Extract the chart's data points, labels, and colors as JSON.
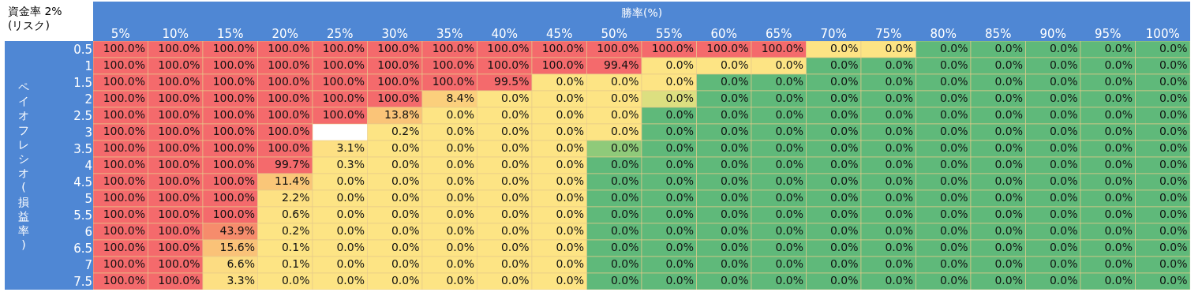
{
  "chart_data": {
    "type": "heatmap",
    "title": "資金率 2%\n(リスク)",
    "xlabel": "勝率(%)",
    "ylabel": "ペイオフレシオ(損益率)",
    "categories": [
      "5%",
      "10%",
      "15%",
      "20%",
      "25%",
      "30%",
      "35%",
      "40%",
      "45%",
      "50%",
      "55%",
      "60%",
      "65%",
      "70%",
      "75%",
      "80%",
      "85%",
      "90%",
      "95%",
      "100%"
    ],
    "y_categories": [
      "0.5",
      "1",
      "1.5",
      "2",
      "2.5",
      "3",
      "3.5",
      "4",
      "4.5",
      "5",
      "5.5",
      "6",
      "6.5",
      "7",
      "7.5"
    ],
    "cells": [
      [
        100,
        100,
        100,
        100,
        100,
        100,
        100,
        100,
        100,
        100,
        100,
        100,
        100,
        0,
        0,
        0,
        0,
        0,
        0,
        0
      ],
      [
        100,
        100,
        100,
        100,
        100,
        100,
        100,
        100,
        100,
        99.4,
        0,
        0,
        0,
        0,
        0,
        0,
        0,
        0,
        0,
        0
      ],
      [
        100,
        100,
        100,
        100,
        100,
        100,
        100,
        99.5,
        0,
        0,
        0,
        0,
        0,
        0,
        0,
        0,
        0,
        0,
        0,
        0
      ],
      [
        100,
        100,
        100,
        100,
        100,
        100,
        8.4,
        0,
        0,
        0,
        0,
        0,
        0,
        0,
        0,
        0,
        0,
        0,
        0,
        0
      ],
      [
        100,
        100,
        100,
        100,
        100,
        13.8,
        0,
        0,
        0,
        0,
        0,
        0,
        0,
        0,
        0,
        0,
        0,
        0,
        0,
        0
      ],
      [
        100,
        100,
        100,
        100,
        null,
        0.2,
        0,
        0,
        0,
        0,
        0,
        0,
        0,
        0,
        0,
        0,
        0,
        0,
        0,
        0
      ],
      [
        100,
        100,
        100,
        100,
        3.1,
        0,
        0,
        0,
        0,
        0,
        0,
        0,
        0,
        0,
        0,
        0,
        0,
        0,
        0,
        0
      ],
      [
        100,
        100,
        100,
        99.7,
        0.3,
        0,
        0,
        0,
        0,
        0,
        0,
        0,
        0,
        0,
        0,
        0,
        0,
        0,
        0,
        0
      ],
      [
        100,
        100,
        100,
        11.4,
        0,
        0,
        0,
        0,
        0,
        0,
        0,
        0,
        0,
        0,
        0,
        0,
        0,
        0,
        0,
        0
      ],
      [
        100,
        100,
        100,
        2.2,
        0,
        0,
        0,
        0,
        0,
        0,
        0,
        0,
        0,
        0,
        0,
        0,
        0,
        0,
        0,
        0
      ],
      [
        100,
        100,
        100,
        0.6,
        0,
        0,
        0,
        0,
        0,
        0,
        0,
        0,
        0,
        0,
        0,
        0,
        0,
        0,
        0,
        0
      ],
      [
        100,
        100,
        43.9,
        0.2,
        0,
        0,
        0,
        0,
        0,
        0,
        0,
        0,
        0,
        0,
        0,
        0,
        0,
        0,
        0,
        0
      ],
      [
        100,
        100,
        15.6,
        0.1,
        0,
        0,
        0,
        0,
        0,
        0,
        0,
        0,
        0,
        0,
        0,
        0,
        0,
        0,
        0,
        0
      ],
      [
        100,
        100,
        6.6,
        0.1,
        0,
        0,
        0,
        0,
        0,
        0,
        0,
        0,
        0,
        0,
        0,
        0,
        0,
        0,
        0,
        0
      ],
      [
        100,
        100,
        3.3,
        0,
        0,
        0,
        0,
        0,
        0,
        0,
        0,
        0,
        0,
        0,
        0,
        0,
        0,
        0,
        0,
        0
      ]
    ],
    "data_labels": true,
    "colors": [
      [
        "#fde484",
        "#fde484",
        "#fde484",
        "#fde484",
        "#fde484",
        "#fde484",
        "#fde484",
        "#fde484",
        "#fde484",
        "#fde484",
        "#fde484",
        "#fde484",
        "#fde484",
        "#fde484",
        "#fde484",
        "#5fb97a",
        "#5fb97a",
        "#5fb97a",
        "#5fb97a",
        "#5fb97a"
      ],
      [
        "#f46a6c",
        "#f46a6c",
        "#f46a6c",
        "#f46a6c",
        "#f46a6c",
        "#f46a6c",
        "#f46a6c",
        "#f46a6c",
        "#f46a6c",
        "#f46a6c",
        "#fde484",
        "#fde484",
        "#fde484",
        "#5fb97a",
        "#5fb97a",
        "#5fb97a",
        "#5fb97a",
        "#5fb97a",
        "#5fb97a",
        "#5fb97a"
      ],
      [
        "#f46a6c",
        "#f46a6c",
        "#f46a6c",
        "#f46a6c",
        "#f46a6c",
        "#f46a6c",
        "#f46a6c",
        "#f46a6c",
        "#fde484",
        "#fde484",
        "#fde484",
        "#5fb97a",
        "#5fb97a",
        "#5fb97a",
        "#5fb97a",
        "#5fb97a",
        "#5fb97a",
        "#5fb97a",
        "#5fb97a",
        "#5fb97a"
      ],
      [
        "#f46a6c",
        "#f46a6c",
        "#f46a6c",
        "#f46a6c",
        "#f46a6c",
        "#f46a6c",
        "#fcd87e",
        "#fde484",
        "#fde484",
        "#fde484",
        "#dcdf80",
        "#5fb97a",
        "#5fb97a",
        "#5fb97a",
        "#5fb97a",
        "#5fb97a",
        "#5fb97a",
        "#5fb97a",
        "#5fb97a",
        "#5fb97a"
      ],
      [
        "#f46a6c",
        "#f46a6c",
        "#f46a6c",
        "#f46a6c",
        "#f46a6c",
        "#fbd27a",
        "#fde484",
        "#fde484",
        "#fde484",
        "#fde484",
        "#5fb97a",
        "#5fb97a",
        "#5fb97a",
        "#5fb97a",
        "#5fb97a",
        "#5fb97a",
        "#5fb97a",
        "#5fb97a",
        "#5fb97a",
        "#5fb97a"
      ],
      [
        "#f46a6c",
        "#f46a6c",
        "#f46a6c",
        "#f46a6c",
        "#f46a6c",
        "#fde484",
        "#fde484",
        "#fde484",
        "#fde484",
        "#fde484",
        "#5fb97a",
        "#5fb97a",
        "#5fb97a",
        "#5fb97a",
        "#5fb97a",
        "#5fb97a",
        "#5fb97a",
        "#5fb97a",
        "#5fb97a",
        "#5fb97a"
      ],
      [
        "#f46a6c",
        "#f46a6c",
        "#f46a6c",
        "#f46a6c",
        "#fde484",
        "#fde484",
        "#fde484",
        "#fde484",
        "#fde484",
        "#8fca7a",
        "#5fb97a",
        "#5fb97a",
        "#5fb97a",
        "#5fb97a",
        "#5fb97a",
        "#5fb97a",
        "#5fb97a",
        "#5fb97a",
        "#5fb97a",
        "#5fb97a"
      ],
      [
        "#f46a6c",
        "#f46a6c",
        "#f46a6c",
        "#f46a6c",
        "#fde484",
        "#fde484",
        "#fde484",
        "#fde484",
        "#fde484",
        "#5fb97a",
        "#5fb97a",
        "#5fb97a",
        "#5fb97a",
        "#5fb97a",
        "#5fb97a",
        "#5fb97a",
        "#5fb97a",
        "#5fb97a",
        "#5fb97a",
        "#5fb97a"
      ],
      [
        "#f46a6c",
        "#f46a6c",
        "#f46a6c",
        "#fbd27a",
        "#fde484",
        "#fde484",
        "#fde484",
        "#fde484",
        "#fde484",
        "#5fb97a",
        "#5fb97a",
        "#5fb97a",
        "#5fb97a",
        "#5fb97a",
        "#5fb97a",
        "#5fb97a",
        "#5fb97a",
        "#5fb97a",
        "#5fb97a",
        "#5fb97a"
      ],
      [
        "#f46a6c",
        "#f46a6c",
        "#f46a6c",
        "#fde484",
        "#fde484",
        "#fde484",
        "#fde484",
        "#fde484",
        "#fde484",
        "#5fb97a",
        "#5fb97a",
        "#5fb97a",
        "#5fb97a",
        "#5fb97a",
        "#5fb97a",
        "#5fb97a",
        "#5fb97a",
        "#5fb97a",
        "#5fb97a",
        "#5fb97a"
      ],
      [
        "#f46a6c",
        "#f46a6c",
        "#f46a6c",
        "#fde484",
        "#fde484",
        "#fde484",
        "#fde484",
        "#fde484",
        "#fde484",
        "#5fb97a",
        "#5fb97a",
        "#5fb97a",
        "#5fb97a",
        "#5fb97a",
        "#5fb97a",
        "#5fb97a",
        "#5fb97a",
        "#5fb97a",
        "#5fb97a",
        "#5fb97a"
      ],
      [
        "#f46a6c",
        "#f46a6c",
        "#f8a66c",
        "#fde484",
        "#fde484",
        "#fde484",
        "#fde484",
        "#fde484",
        "#fde484",
        "#5fb97a",
        "#5fb97a",
        "#5fb97a",
        "#5fb97a",
        "#5fb97a",
        "#5fb97a",
        "#5fb97a",
        "#5fb97a",
        "#5fb97a",
        "#5fb97a",
        "#5fb97a"
      ],
      [
        "#f46a6c",
        "#f46a6c",
        "#fbd27a",
        "#fde484",
        "#fde484",
        "#fde484",
        "#fde484",
        "#fde484",
        "#fde484",
        "#5fb97a",
        "#5fb97a",
        "#5fb97a",
        "#5fb97a",
        "#5fb97a",
        "#5fb97a",
        "#5fb97a",
        "#5fb97a",
        "#5fb97a",
        "#5fb97a",
        "#5fb97a"
      ],
      [
        "#f46a6c",
        "#f46a6c",
        "#fde484",
        "#fde484",
        "#fde484",
        "#fde484",
        "#fde484",
        "#fde484",
        "#fde484",
        "#5fb97a",
        "#5fb97a",
        "#5fb97a",
        "#5fb97a",
        "#5fb97a",
        "#5fb97a",
        "#5fb97a",
        "#5fb97a",
        "#5fb97a",
        "#5fb97a",
        "#5fb97a"
      ],
      [
        "#f46a6c",
        "#f46a6c",
        "#fde484",
        "#fde484",
        "#fde484",
        "#fde484",
        "#fde484",
        "#fde484",
        "#fde484",
        "#5fb97a",
        "#5fb97a",
        "#5fb97a",
        "#5fb97a",
        "#5fb97a",
        "#5fb97a",
        "#5fb97a",
        "#5fb97a",
        "#5fb97a",
        "#5fb97a",
        "#5fb97a"
      ]
    ],
    "cell_labels": [
      [
        "100.0%",
        "100.0%",
        "100.0%",
        "100.0%",
        "100.0%",
        "100.0%",
        "100.0%",
        "100.0%",
        "100.0%",
        "100.0%",
        "100.0%",
        "100.0%",
        "100.0%",
        "0.0%",
        "0.0%",
        "0.0%",
        "0.0%",
        "0.0%",
        "0.0%",
        "0.0%"
      ],
      [
        "100.0%",
        "100.0%",
        "100.0%",
        "100.0%",
        "100.0%",
        "100.0%",
        "100.0%",
        "100.0%",
        "100.0%",
        "99.4%",
        "0.0%",
        "0.0%",
        "0.0%",
        "0.0%",
        "0.0%",
        "0.0%",
        "0.0%",
        "0.0%",
        "0.0%",
        "0.0%"
      ],
      [
        "100.0%",
        "100.0%",
        "100.0%",
        "100.0%",
        "100.0%",
        "100.0%",
        "100.0%",
        "99.5%",
        "0.0%",
        "0.0%",
        "0.0%",
        "0.0%",
        "0.0%",
        "0.0%",
        "0.0%",
        "0.0%",
        "0.0%",
        "0.0%",
        "0.0%",
        "0.0%"
      ],
      [
        "100.0%",
        "100.0%",
        "100.0%",
        "100.0%",
        "100.0%",
        "100.0%",
        "8.4%",
        "0.0%",
        "0.0%",
        "0.0%",
        "0.0%",
        "0.0%",
        "0.0%",
        "0.0%",
        "0.0%",
        "0.0%",
        "0.0%",
        "0.0%",
        "0.0%",
        "0.0%"
      ],
      [
        "100.0%",
        "100.0%",
        "100.0%",
        "100.0%",
        "100.0%",
        "13.8%",
        "0.0%",
        "0.0%",
        "0.0%",
        "0.0%",
        "0.0%",
        "0.0%",
        "0.0%",
        "0.0%",
        "0.0%",
        "0.0%",
        "0.0%",
        "0.0%",
        "0.0%",
        "0.0%"
      ],
      [
        "100.0%",
        "100.0%",
        "100.0%",
        "100.0%",
        null,
        "0.2%",
        "0.0%",
        "0.0%",
        "0.0%",
        "0.0%",
        "0.0%",
        "0.0%",
        "0.0%",
        "0.0%",
        "0.0%",
        "0.0%",
        "0.0%",
        "0.0%",
        "0.0%",
        "0.0%"
      ],
      [
        "100.0%",
        "100.0%",
        "100.0%",
        "100.0%",
        "3.1%",
        "0.0%",
        "0.0%",
        "0.0%",
        "0.0%",
        "0.0%",
        "0.0%",
        "0.0%",
        "0.0%",
        "0.0%",
        "0.0%",
        "0.0%",
        "0.0%",
        "0.0%",
        "0.0%",
        "0.0%"
      ],
      [
        "100.0%",
        "100.0%",
        "100.0%",
        "99.7%",
        "0.3%",
        "0.0%",
        "0.0%",
        "0.0%",
        "0.0%",
        "0.0%",
        "0.0%",
        "0.0%",
        "0.0%",
        "0.0%",
        "0.0%",
        "0.0%",
        "0.0%",
        "0.0%",
        "0.0%",
        "0.0%"
      ],
      [
        "100.0%",
        "100.0%",
        "100.0%",
        "11.4%",
        "0.0%",
        "0.0%",
        "0.0%",
        "0.0%",
        "0.0%",
        "0.0%",
        "0.0%",
        "0.0%",
        "0.0%",
        "0.0%",
        "0.0%",
        "0.0%",
        "0.0%",
        "0.0%",
        "0.0%",
        "0.0%"
      ],
      [
        "100.0%",
        "100.0%",
        "100.0%",
        "2.2%",
        "0.0%",
        "0.0%",
        "0.0%",
        "0.0%",
        "0.0%",
        "0.0%",
        "0.0%",
        "0.0%",
        "0.0%",
        "0.0%",
        "0.0%",
        "0.0%",
        "0.0%",
        "0.0%",
        "0.0%",
        "0.0%"
      ],
      [
        "100.0%",
        "100.0%",
        "100.0%",
        "0.6%",
        "0.0%",
        "0.0%",
        "0.0%",
        "0.0%",
        "0.0%",
        "0.0%",
        "0.0%",
        "0.0%",
        "0.0%",
        "0.0%",
        "0.0%",
        "0.0%",
        "0.0%",
        "0.0%",
        "0.0%",
        "0.0%"
      ],
      [
        "100.0%",
        "100.0%",
        "43.9%",
        "0.2%",
        "0.0%",
        "0.0%",
        "0.0%",
        "0.0%",
        "0.0%",
        "0.0%",
        "0.0%",
        "0.0%",
        "0.0%",
        "0.0%",
        "0.0%",
        "0.0%",
        "0.0%",
        "0.0%",
        "0.0%",
        "0.0%"
      ],
      [
        "100.0%",
        "100.0%",
        "15.6%",
        "0.1%",
        "0.0%",
        "0.0%",
        "0.0%",
        "0.0%",
        "0.0%",
        "0.0%",
        "0.0%",
        "0.0%",
        "0.0%",
        "0.0%",
        "0.0%",
        "0.0%",
        "0.0%",
        "0.0%",
        "0.0%",
        "0.0%"
      ],
      [
        "100.0%",
        "100.0%",
        "6.6%",
        "0.1%",
        "0.0%",
        "0.0%",
        "0.0%",
        "0.0%",
        "0.0%",
        "0.0%",
        "0.0%",
        "0.0%",
        "0.0%",
        "0.0%",
        "0.0%",
        "0.0%",
        "0.0%",
        "0.0%",
        "0.0%",
        "0.0%"
      ],
      [
        "100.0%",
        "100.0%",
        "3.3%",
        "0.0%",
        "0.0%",
        "0.0%",
        "0.0%",
        "0.0%",
        "0.0%",
        "0.0%",
        "0.0%",
        "0.0%",
        "0.0%",
        "0.0%",
        "0.0%",
        "0.0%",
        "0.0%",
        "0.0%",
        "0.0%",
        "0.0%"
      ]
    ]
  }
}
